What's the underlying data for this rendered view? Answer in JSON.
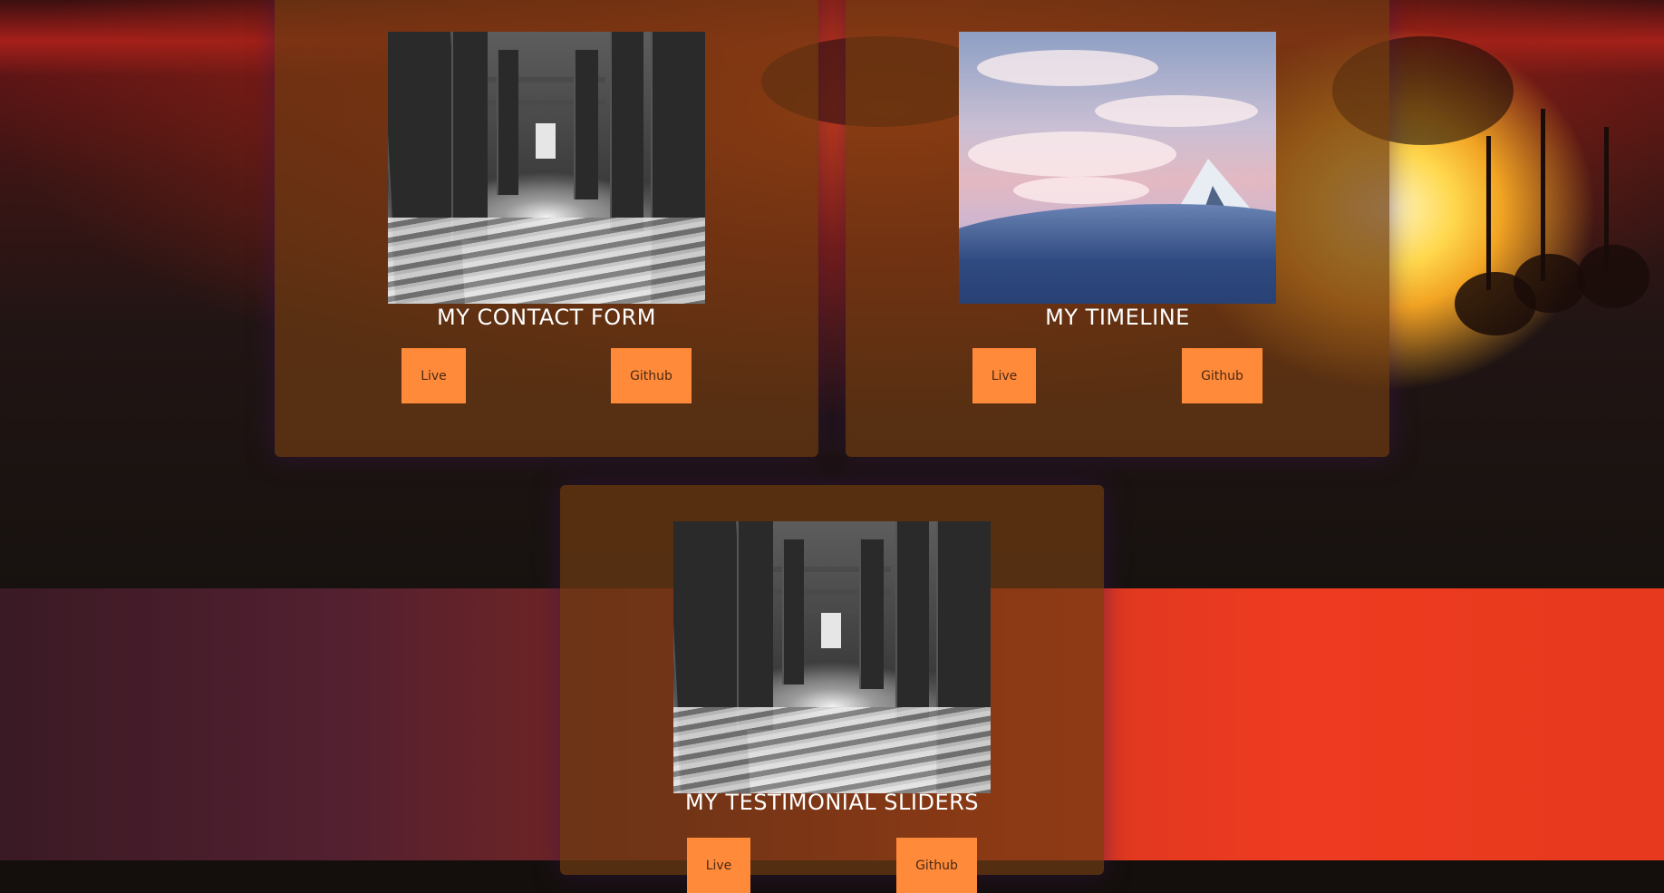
{
  "projects": [
    {
      "title": "MY CONTACT FORM",
      "image": "pier-photo",
      "live_label": "Live",
      "github_label": "Github"
    },
    {
      "title": "MY TIMELINE",
      "image": "mountain-photo",
      "live_label": "Live",
      "github_label": "Github"
    },
    {
      "title": "MY TESTIMONIAL SLIDERS",
      "image": "pier-photo",
      "live_label": "Live",
      "github_label": "Github"
    }
  ],
  "colors": {
    "button": "#ff8a3a",
    "card": "rgba(110,58,18,0.72)",
    "title_text": "#ffffff"
  }
}
